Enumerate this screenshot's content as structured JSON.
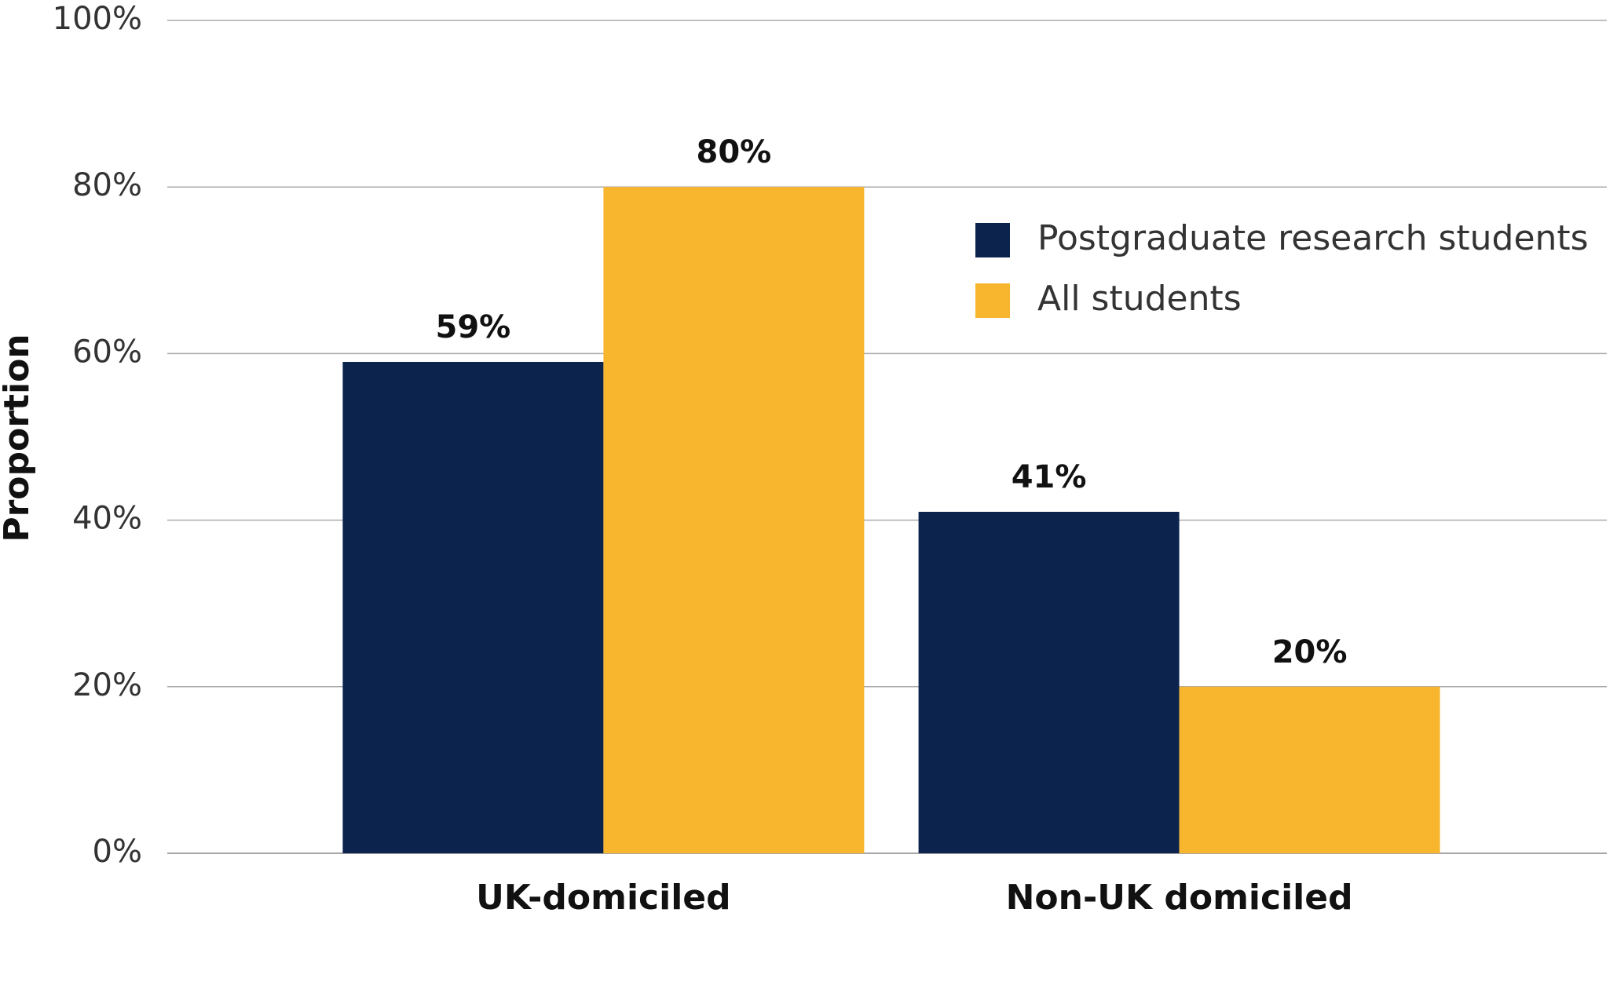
{
  "chart_data": {
    "type": "bar",
    "y_label": "Proportion",
    "categories": [
      "UK-domiciled",
      "Non-UK domiciled"
    ],
    "series": [
      {
        "name": "Postgraduate research students",
        "color": "#0c244d",
        "values": [
          59,
          41
        ],
        "value_labels": [
          "59%",
          "41%"
        ]
      },
      {
        "name": "All students",
        "color": "#f8b62e",
        "values": [
          80,
          20
        ],
        "value_labels": [
          "80%",
          "20%"
        ]
      }
    ],
    "ylim": [
      0,
      100
    ],
    "yticks": [
      {
        "value": 0,
        "label": "0%"
      },
      {
        "value": 20,
        "label": "20%"
      },
      {
        "value": 40,
        "label": "40%"
      },
      {
        "value": 60,
        "label": "60%"
      },
      {
        "value": 80,
        "label": "80%"
      },
      {
        "value": 100,
        "label": "100%"
      }
    ],
    "grid": true
  }
}
